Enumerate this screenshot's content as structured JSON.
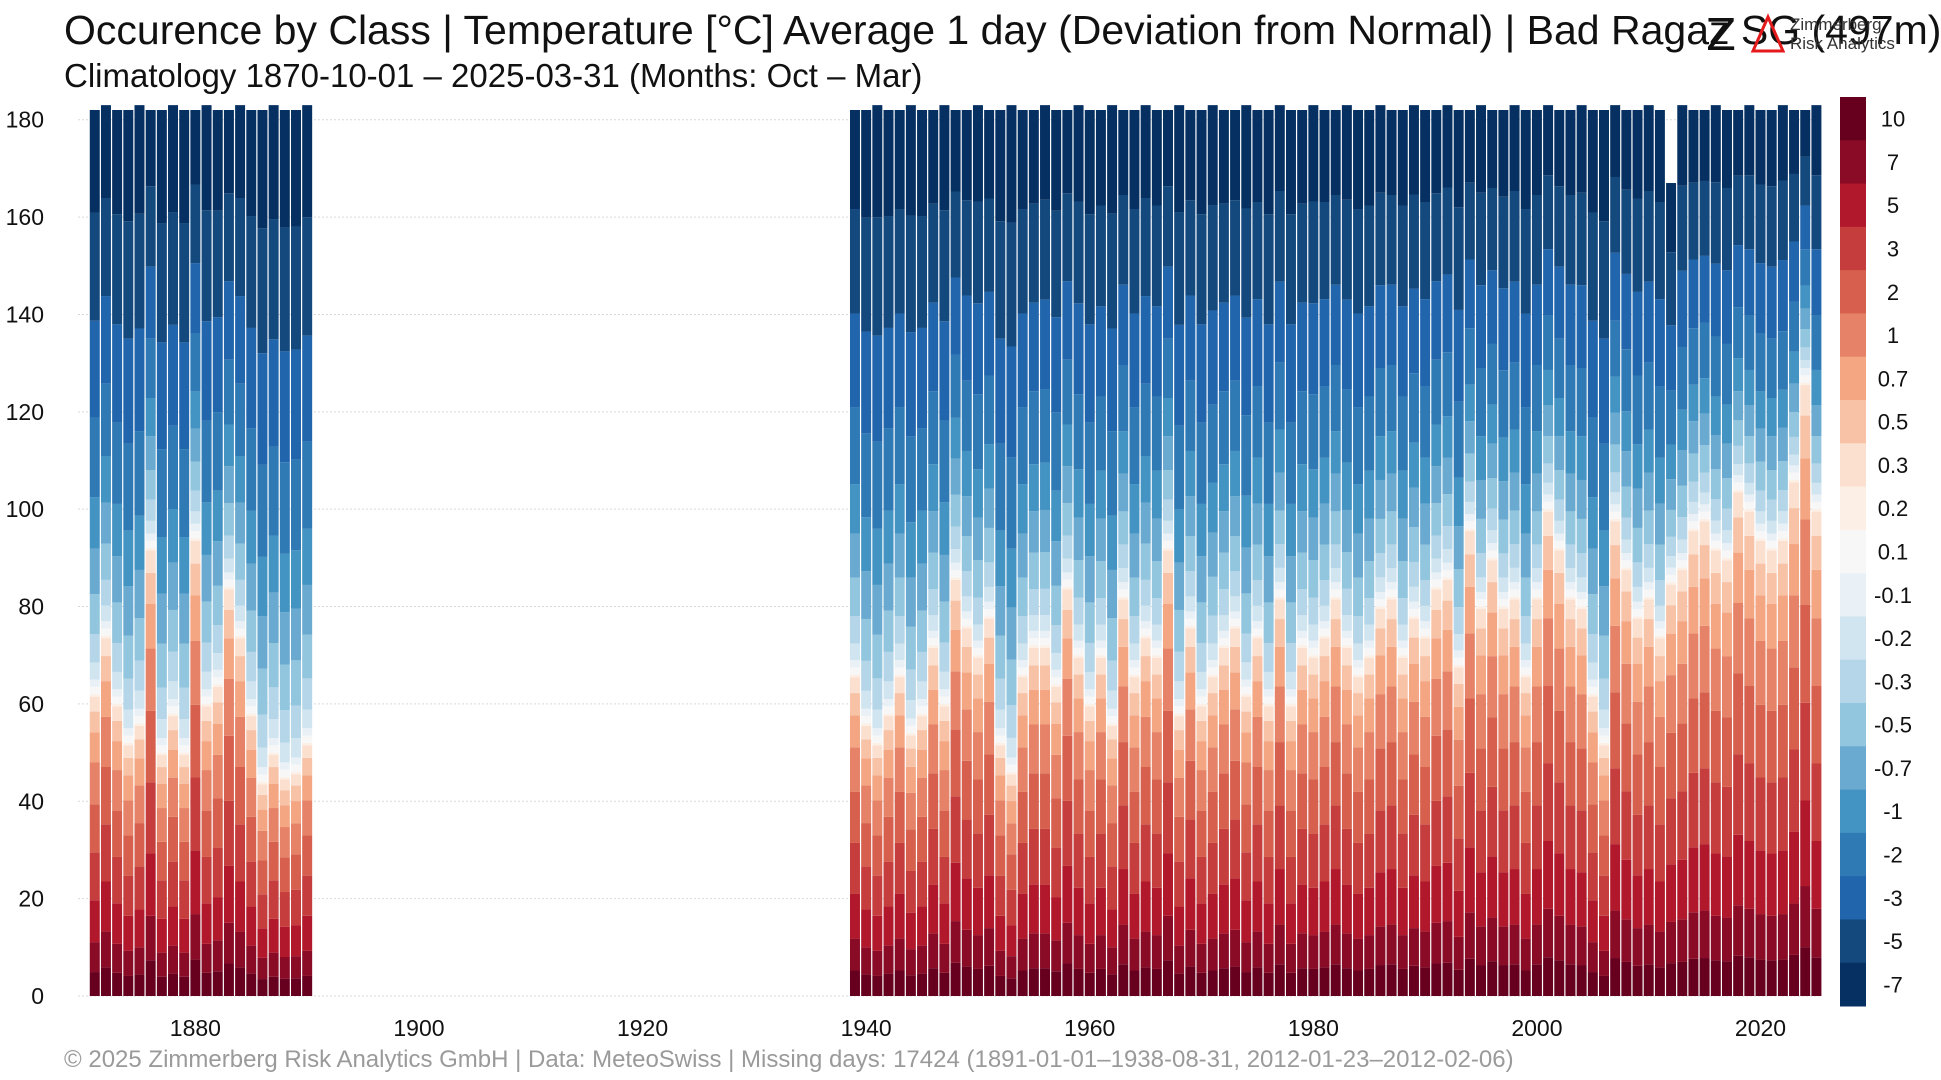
{
  "title": "Occurence by Class | Temperature [°C] Average 1 day (Deviation from Normal) | Bad Ragaz  SG (497m)",
  "subtitle": "Climatology 1870-10-01 – 2025-03-31 (Months: Oct – Mar)",
  "footer": "©  2025 Zimmerberg Risk Analytics GmbH | Data: MeteoSwiss | Missing days: 17424 (1891-01-01–1938-08-31, 2012-01-23–2012-02-06)",
  "logo": {
    "line1": "Zimmerberg",
    "line2": "Risk Analytics"
  },
  "chart_data": {
    "type": "bar",
    "stacked": true,
    "xlabel": "",
    "ylabel": "",
    "ylim": [
      0,
      182
    ],
    "xlim": [
      1869.5,
      2025.5
    ],
    "y_ticks": [
      0,
      20,
      40,
      60,
      80,
      100,
      120,
      140,
      160,
      180
    ],
    "x_ticks": [
      1880,
      1900,
      1920,
      1940,
      1960,
      1980,
      2000,
      2020
    ],
    "grid": true,
    "legend_position": "right colorbar",
    "classes": [
      "10",
      "7",
      "5",
      "3",
      "2",
      "1",
      "0.7",
      "0.5",
      "0.3",
      "0.2",
      "0.1",
      "-0.1",
      "-0.2",
      "-0.3",
      "-0.5",
      "-0.7",
      "-1",
      "-2",
      "-3",
      "-5",
      "-7"
    ],
    "class_colors": [
      "#67001f",
      "#8a0b25",
      "#b2182b",
      "#c53e3d",
      "#d6604d",
      "#e58267",
      "#f4a582",
      "#f7c2a6",
      "#fbe0d0",
      "#fcefe6",
      "#f7f7f7",
      "#eaf1f6",
      "#d1e5f0",
      "#b5d6e8",
      "#92c5de",
      "#6aaad0",
      "#4393c3",
      "#2f79b5",
      "#2166ac",
      "#14497e",
      "#053061"
    ],
    "years": [
      1871,
      1872,
      1873,
      1874,
      1875,
      1876,
      1877,
      1878,
      1879,
      1880,
      1881,
      1882,
      1883,
      1884,
      1885,
      1886,
      1887,
      1888,
      1889,
      1890,
      1939,
      1940,
      1941,
      1942,
      1943,
      1944,
      1945,
      1946,
      1947,
      1948,
      1949,
      1950,
      1951,
      1952,
      1953,
      1954,
      1955,
      1956,
      1957,
      1958,
      1959,
      1960,
      1961,
      1962,
      1963,
      1964,
      1965,
      1966,
      1967,
      1968,
      1969,
      1970,
      1971,
      1972,
      1973,
      1974,
      1975,
      1976,
      1977,
      1978,
      1979,
      1980,
      1981,
      1982,
      1983,
      1984,
      1985,
      1986,
      1987,
      1988,
      1989,
      1990,
      1991,
      1992,
      1993,
      1994,
      1995,
      1996,
      1997,
      1998,
      1999,
      2000,
      2001,
      2002,
      2003,
      2004,
      2005,
      2006,
      2007,
      2008,
      2009,
      2010,
      2011,
      2012,
      2013,
      2014,
      2015,
      2016,
      2017,
      2018,
      2019,
      2020,
      2021,
      2022,
      2023,
      2024,
      2025
    ],
    "warm_days": [
      62,
      74,
      60,
      52,
      56,
      92,
      50,
      58,
      50,
      94,
      60,
      64,
      84,
      74,
      58,
      44,
      50,
      45,
      46,
      52,
      66,
      56,
      52,
      58,
      66,
      54,
      58,
      72,
      60,
      86,
      76,
      70,
      78,
      52,
      46,
      66,
      72,
      72,
      64,
      84,
      70,
      60,
      70,
      56,
      82,
      66,
      74,
      70,
      92,
      58,
      76,
      60,
      66,
      72,
      76,
      62,
      74,
      60,
      82,
      60,
      72,
      70,
      74,
      82,
      72,
      66,
      70,
      80,
      82,
      70,
      78,
      74,
      84,
      86,
      68,
      96,
      80,
      90,
      80,
      82,
      66,
      82,
      100,
      92,
      82,
      80,
      62,
      52,
      98,
      88,
      78,
      82,
      74,
      85,
      88,
      96,
      98,
      92,
      90,
      104,
      100,
      94,
      92,
      94,
      106,
      126,
      100
    ],
    "cold_shares": [
      0.06,
      0.12,
      0.14,
      0.22,
      0.46
    ],
    "warm_shares": [
      0.08,
      0.1,
      0.14,
      0.16,
      0.16,
      0.14,
      0.1,
      0.07,
      0.05
    ],
    "neutral_days": 3
  }
}
